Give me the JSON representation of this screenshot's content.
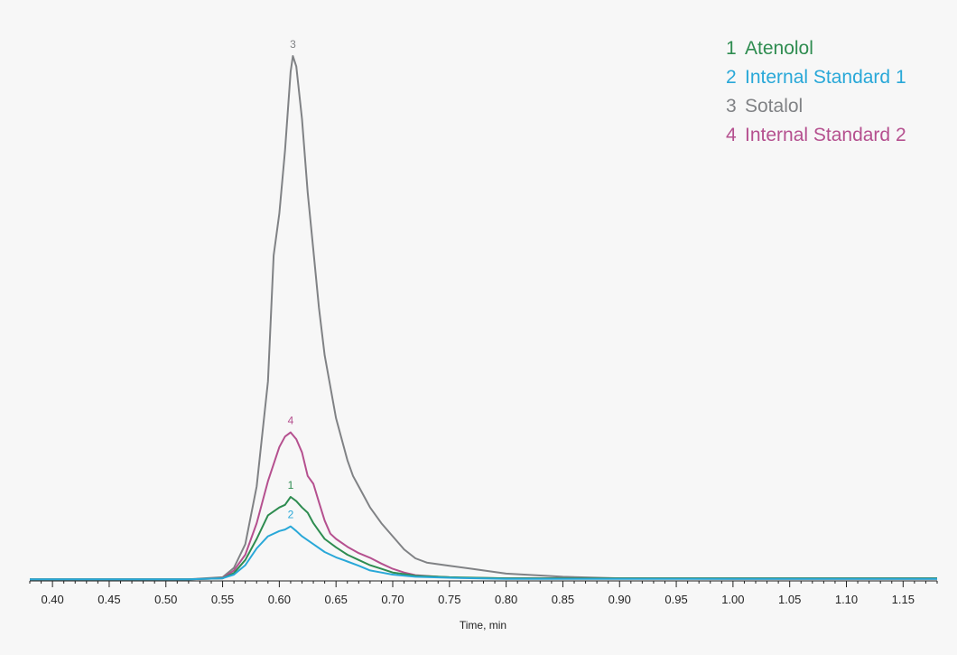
{
  "chart_data": {
    "type": "line",
    "title": "",
    "xlabel": "Time, min",
    "ylabel": "",
    "xlim": [
      0.38,
      1.18
    ],
    "ylim": [
      0,
      100
    ],
    "grid": false,
    "legend_position": "top-right",
    "x_ticks": [
      0.4,
      0.45,
      0.5,
      0.55,
      0.6,
      0.65,
      0.7,
      0.75,
      0.8,
      0.85,
      0.9,
      0.95,
      1.0,
      1.05,
      1.1,
      1.15
    ],
    "x_tick_labels": [
      "0.40",
      "0.45",
      "0.50",
      "0.55",
      "0.60",
      "0.65",
      "0.70",
      "0.75",
      "0.80",
      "0.85",
      "0.90",
      "0.95",
      "1.00",
      "1.05",
      "1.10",
      "1.15"
    ],
    "series": [
      {
        "name": "Sotalol",
        "legend_number": "3",
        "peak_label": "3",
        "color": "#808285",
        "points": [
          [
            0.38,
            0.3
          ],
          [
            0.52,
            0.3
          ],
          [
            0.55,
            0.7
          ],
          [
            0.56,
            2.5
          ],
          [
            0.57,
            7
          ],
          [
            0.58,
            18
          ],
          [
            0.59,
            38
          ],
          [
            0.595,
            62
          ],
          [
            0.6,
            70
          ],
          [
            0.605,
            82
          ],
          [
            0.61,
            97
          ],
          [
            0.612,
            100
          ],
          [
            0.615,
            98
          ],
          [
            0.62,
            88
          ],
          [
            0.625,
            74
          ],
          [
            0.63,
            63
          ],
          [
            0.635,
            52
          ],
          [
            0.64,
            43
          ],
          [
            0.645,
            37
          ],
          [
            0.65,
            31
          ],
          [
            0.66,
            23
          ],
          [
            0.665,
            20
          ],
          [
            0.67,
            18
          ],
          [
            0.675,
            16
          ],
          [
            0.68,
            14
          ],
          [
            0.69,
            11
          ],
          [
            0.7,
            8.5
          ],
          [
            0.71,
            6
          ],
          [
            0.72,
            4.3
          ],
          [
            0.73,
            3.5
          ],
          [
            0.75,
            2.9
          ],
          [
            0.77,
            2.3
          ],
          [
            0.8,
            1.4
          ],
          [
            0.85,
            0.8
          ],
          [
            0.9,
            0.5
          ],
          [
            1.0,
            0.4
          ],
          [
            1.18,
            0.4
          ]
        ]
      },
      {
        "name": "Internal Standard 2",
        "legend_number": "4",
        "peak_label": "4",
        "color": "#b5508f",
        "points": [
          [
            0.38,
            0.3
          ],
          [
            0.52,
            0.3
          ],
          [
            0.55,
            0.5
          ],
          [
            0.56,
            2
          ],
          [
            0.57,
            5
          ],
          [
            0.58,
            11
          ],
          [
            0.59,
            19
          ],
          [
            0.6,
            25.5
          ],
          [
            0.605,
            27.5
          ],
          [
            0.61,
            28.3
          ],
          [
            0.615,
            27
          ],
          [
            0.62,
            24.5
          ],
          [
            0.625,
            20
          ],
          [
            0.63,
            18.5
          ],
          [
            0.635,
            15
          ],
          [
            0.64,
            11.5
          ],
          [
            0.645,
            9
          ],
          [
            0.65,
            8
          ],
          [
            0.66,
            6.5
          ],
          [
            0.67,
            5.3
          ],
          [
            0.68,
            4.4
          ],
          [
            0.69,
            3.3
          ],
          [
            0.7,
            2.3
          ],
          [
            0.71,
            1.6
          ],
          [
            0.72,
            1.1
          ],
          [
            0.74,
            0.8
          ],
          [
            0.76,
            0.6
          ],
          [
            0.8,
            0.5
          ],
          [
            1.18,
            0.5
          ]
        ]
      },
      {
        "name": "Atenolol",
        "legend_number": "1",
        "peak_label": "1",
        "color": "#2e8c50",
        "points": [
          [
            0.38,
            0.3
          ],
          [
            0.52,
            0.3
          ],
          [
            0.55,
            0.5
          ],
          [
            0.56,
            1.5
          ],
          [
            0.57,
            4
          ],
          [
            0.58,
            8
          ],
          [
            0.59,
            12.5
          ],
          [
            0.6,
            14
          ],
          [
            0.605,
            14.5
          ],
          [
            0.61,
            16
          ],
          [
            0.615,
            15.2
          ],
          [
            0.62,
            14
          ],
          [
            0.625,
            13
          ],
          [
            0.63,
            11
          ],
          [
            0.635,
            9.5
          ],
          [
            0.64,
            8
          ],
          [
            0.65,
            6.4
          ],
          [
            0.66,
            5
          ],
          [
            0.67,
            4
          ],
          [
            0.68,
            3
          ],
          [
            0.69,
            2.3
          ],
          [
            0.7,
            1.6
          ],
          [
            0.72,
            1
          ],
          [
            0.75,
            0.7
          ],
          [
            0.8,
            0.5
          ],
          [
            1.18,
            0.5
          ]
        ]
      },
      {
        "name": "Internal Standard 1",
        "legend_number": "2",
        "peak_label": "2",
        "color": "#29a8d8",
        "points": [
          [
            0.38,
            0.3
          ],
          [
            0.52,
            0.3
          ],
          [
            0.55,
            0.5
          ],
          [
            0.56,
            1.2
          ],
          [
            0.57,
            3
          ],
          [
            0.58,
            6.2
          ],
          [
            0.59,
            8.5
          ],
          [
            0.6,
            9.5
          ],
          [
            0.605,
            9.8
          ],
          [
            0.61,
            10.4
          ],
          [
            0.615,
            9.5
          ],
          [
            0.62,
            8.5
          ],
          [
            0.63,
            7
          ],
          [
            0.64,
            5.5
          ],
          [
            0.65,
            4.5
          ],
          [
            0.66,
            3.7
          ],
          [
            0.67,
            2.9
          ],
          [
            0.68,
            2
          ],
          [
            0.69,
            1.6
          ],
          [
            0.7,
            1.2
          ],
          [
            0.72,
            0.8
          ],
          [
            0.75,
            0.6
          ],
          [
            0.8,
            0.4
          ],
          [
            1.18,
            0.4
          ]
        ]
      }
    ],
    "legend": [
      {
        "number": "1",
        "name": "Atenolol",
        "color": "#2e8c50"
      },
      {
        "number": "2",
        "name": "Internal Standard 1",
        "color": "#29a8d8"
      },
      {
        "number": "3",
        "name": "Sotalol",
        "color": "#808285"
      },
      {
        "number": "4",
        "name": "Internal Standard 2",
        "color": "#b5508f"
      }
    ]
  }
}
